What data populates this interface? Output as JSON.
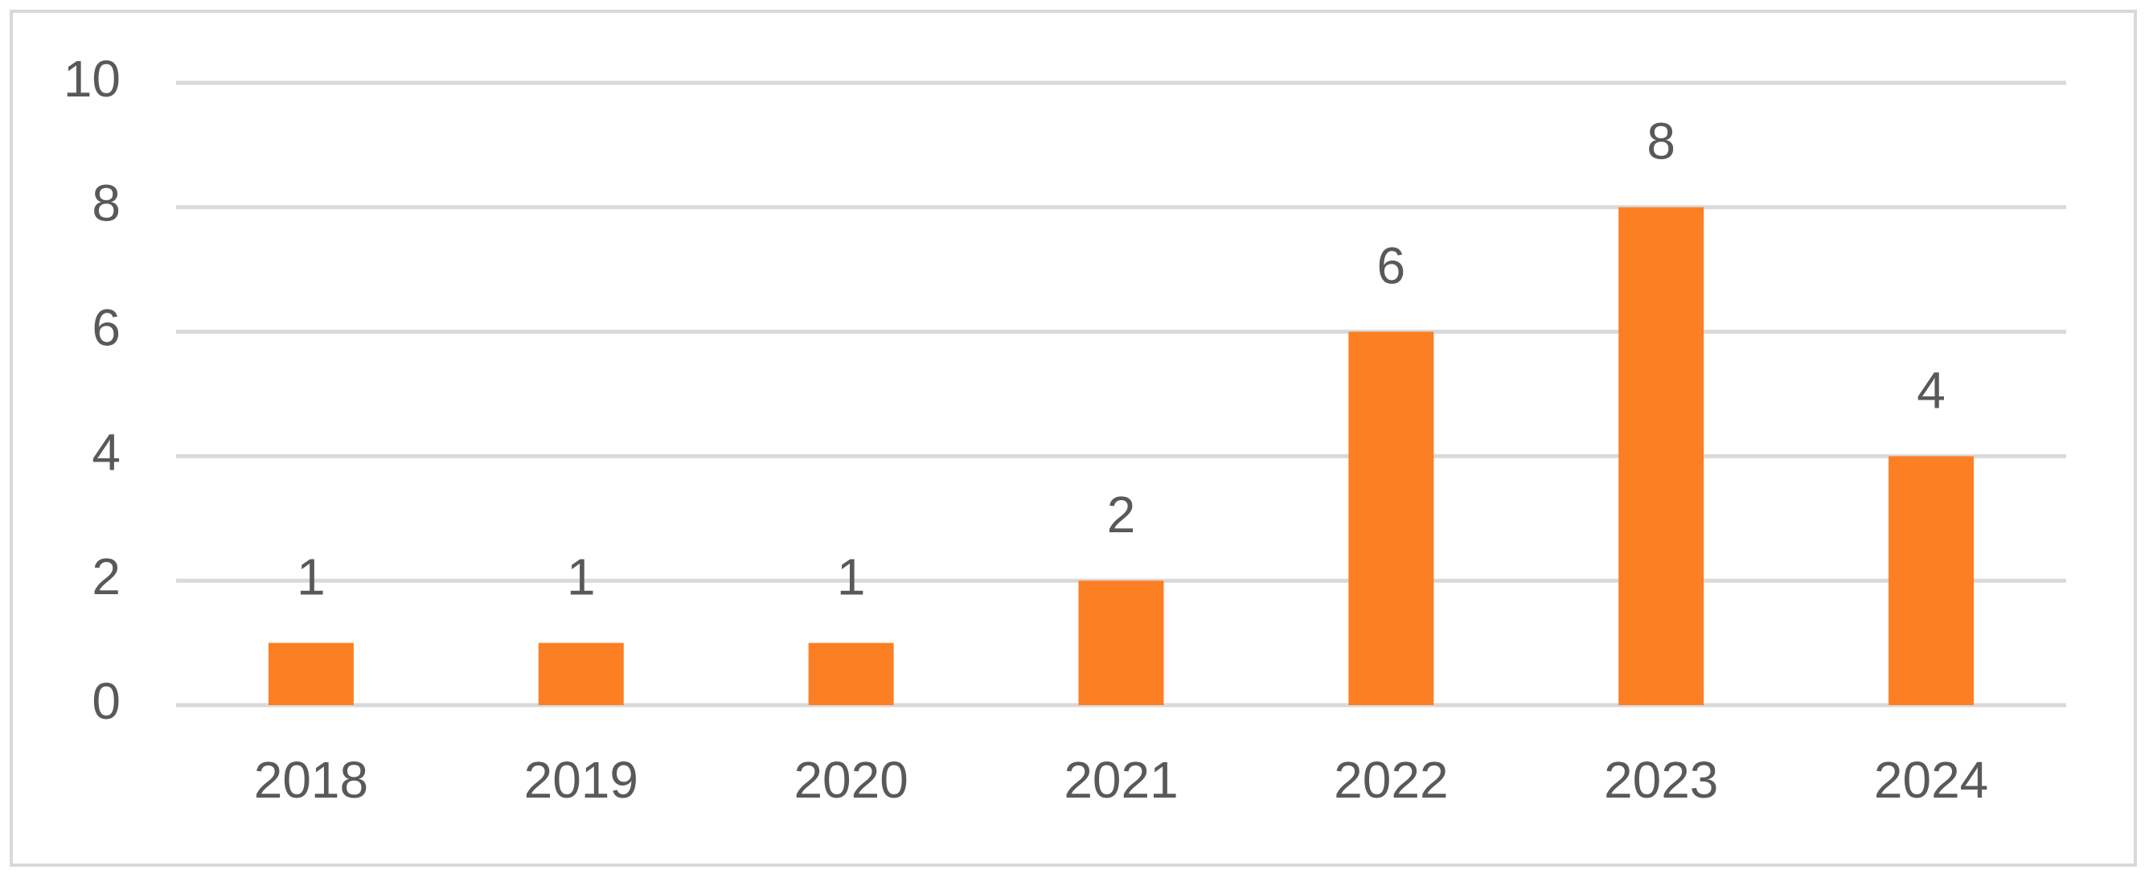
{
  "chart_data": {
    "type": "bar",
    "categories": [
      "2018",
      "2019",
      "2020",
      "2021",
      "2022",
      "2023",
      "2024"
    ],
    "values": [
      1,
      1,
      1,
      2,
      6,
      8,
      4
    ],
    "color": "#fd7f23",
    "ylim": [
      0,
      10
    ],
    "yticks": [
      0,
      2,
      4,
      6,
      8,
      10
    ],
    "grid": true
  }
}
